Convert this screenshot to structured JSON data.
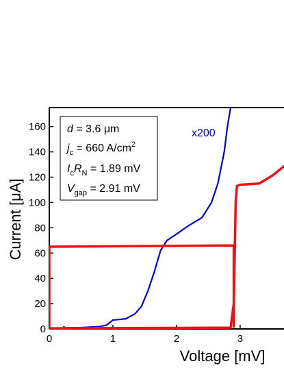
{
  "chart_data": {
    "type": "line",
    "x_label": "Voltage [mV]",
    "y_label": "Current [μA]",
    "xlim": [
      0,
      3.7
    ],
    "ylim": [
      0,
      175
    ],
    "xticks": [
      0,
      1,
      2,
      3
    ],
    "yticks": [
      0,
      20,
      40,
      60,
      80,
      100,
      120,
      140,
      160
    ],
    "annotation_lines": [
      [
        "d",
        " = 3.6 μm"
      ],
      [
        "j",
        "c",
        " = 660 A/cm",
        "2"
      ],
      [
        "I",
        "c",
        "R",
        "N",
        " = 1.89 mV"
      ],
      [
        "V",
        "gap",
        " = 2.91 mV"
      ]
    ],
    "series": [
      {
        "name": "x200",
        "color": "#0000dd",
        "x": [
          0.22,
          0.25,
          0.5,
          0.8,
          0.9,
          1.0,
          1.2,
          1.35,
          1.45,
          1.55,
          1.65,
          1.75,
          1.85,
          2.0,
          2.2,
          2.4,
          2.55,
          2.65,
          2.75,
          2.8,
          2.85
        ],
        "values": [
          2,
          1,
          1,
          2,
          3,
          7,
          8,
          12,
          18,
          30,
          45,
          62,
          70,
          75,
          82,
          88,
          100,
          115,
          140,
          160,
          175
        ]
      },
      {
        "name": null,
        "color": "#ee1111",
        "x": [
          0,
          0,
          2.85,
          2.9,
          2.93,
          2.95,
          3.0,
          3.3,
          3.5,
          3.7,
          2.9,
          0,
          2.9,
          2.9
        ],
        "values": [
          65,
          0.5,
          1,
          20,
          100,
          113,
          114,
          115,
          121,
          129,
          null,
          65,
          66,
          1
        ]
      }
    ]
  }
}
